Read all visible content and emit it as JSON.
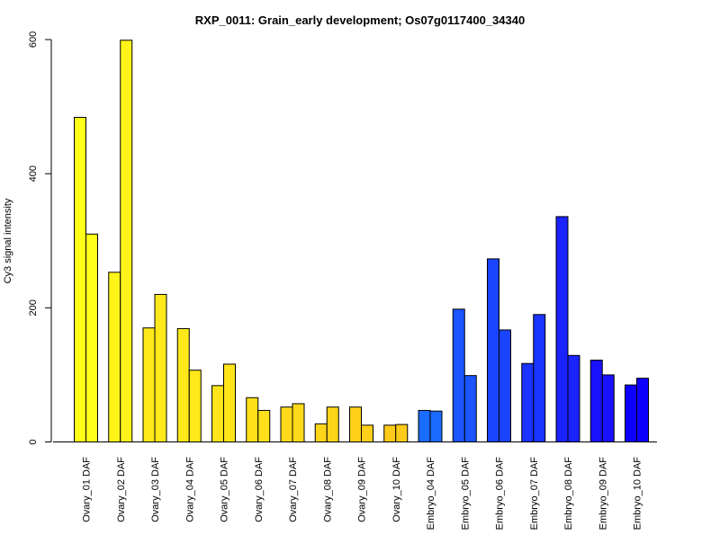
{
  "chart_data": {
    "type": "bar",
    "title": "RXP_0011: Grain_early development; Os07g0117400_34340",
    "xlabel": "",
    "ylabel": "Cy3 signal intensity",
    "ylim": [
      0,
      600
    ],
    "yticks": [
      0,
      200,
      400,
      600
    ],
    "grid": false,
    "legend": "none",
    "categories": [
      "Ovary_01 DAF",
      "Ovary_02 DAF",
      "Ovary_03 DAF",
      "Ovary_04 DAF",
      "Ovary_05 DAF",
      "Ovary_06 DAF",
      "Ovary_07 DAF",
      "Ovary_08 DAF",
      "Ovary_09 DAF",
      "Ovary_10 DAF",
      "Embryo_04 DAF",
      "Embryo_05 DAF",
      "Embryo_06 DAF",
      "Embryo_07 DAF",
      "Embryo_08 DAF",
      "Embryo_09 DAF",
      "Embryo_10 DAF"
    ],
    "series": [
      {
        "values": [
          484,
          253,
          170,
          169,
          84,
          66,
          52,
          27,
          52,
          25,
          47,
          198,
          273,
          117,
          336,
          122,
          85
        ]
      },
      {
        "values": [
          310,
          599,
          220,
          107,
          116,
          47,
          57,
          52,
          25,
          26,
          46,
          99,
          167,
          190,
          129,
          100,
          95
        ]
      }
    ],
    "bar_colors": [
      "#FFFF1A",
      "#FFF41A",
      "#FFE91A",
      "#FFE91A",
      "#FFE51A",
      "#FFE01A",
      "#FFDA1A",
      "#FFD51A",
      "#FFD01A",
      "#FFCB1A",
      "#1A6BFF",
      "#1A55FF",
      "#1A44FF",
      "#1A33FF",
      "#1A22FF",
      "#1A11FF",
      "#0D00FF"
    ]
  }
}
